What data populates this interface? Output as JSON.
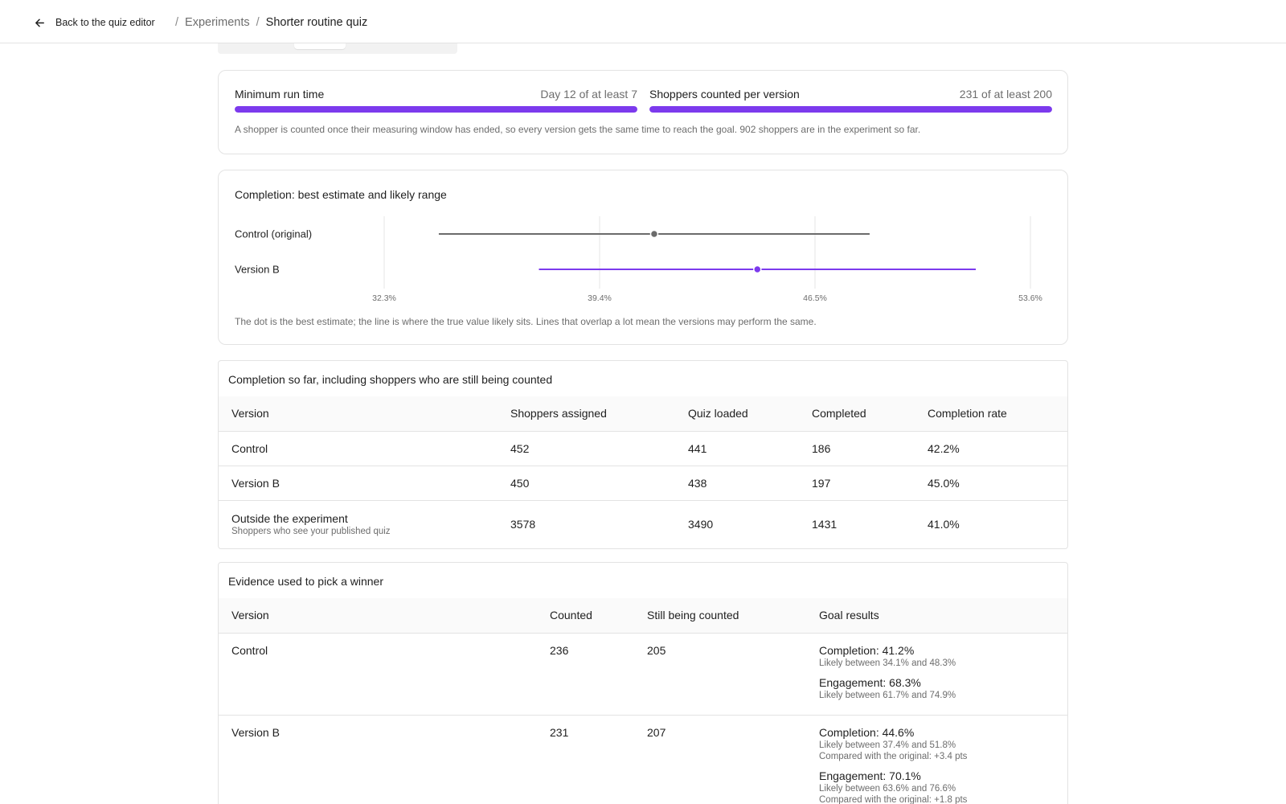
{
  "topbar": {
    "back_label": "Back to the quiz editor",
    "breadcrumb": {
      "parent": "Experiments",
      "current": "Shorter routine quiz"
    }
  },
  "progress": {
    "run_time": {
      "label": "Minimum run time",
      "value": "Day 12 of at least 7",
      "fill": 1.0
    },
    "shoppers": {
      "label": "Shoppers counted per version",
      "value": "231 of at least 200",
      "fill": 1.0
    },
    "note": "A shopper is counted once their measuring window has ended, so every version gets the same time to reach the goal. 902 shoppers are in the experiment so far."
  },
  "chart_section": {
    "title": "Completion: best estimate and likely range",
    "note": "The dot is the best estimate; the line is where the true value likely sits. Lines that overlap a lot mean the versions may perform the same."
  },
  "chart_data": {
    "type": "scatter",
    "title": "Completion: best estimate and likely range",
    "xlim": [
      32.3,
      53.6
    ],
    "x_ticks": [
      "32.3%",
      "39.4%",
      "46.5%",
      "53.6%"
    ],
    "x_tick_values": [
      32.3,
      39.4,
      46.5,
      53.6
    ],
    "grid": true,
    "series": [
      {
        "name": "Control (original)",
        "estimate": 41.2,
        "low": 34.1,
        "high": 48.3,
        "color": "#6b6b6b"
      },
      {
        "name": "Version B",
        "estimate": 44.6,
        "low": 37.4,
        "high": 51.8,
        "color": "#7c3aed"
      }
    ]
  },
  "completion_table": {
    "title": "Completion so far, including shoppers who are still being counted",
    "headers": [
      "Version",
      "Shoppers assigned",
      "Quiz loaded",
      "Completed",
      "Completion rate"
    ],
    "rows": [
      {
        "version": "Control",
        "sub": "",
        "assigned": "452",
        "loaded": "441",
        "completed": "186",
        "rate": "42.2%"
      },
      {
        "version": "Version B",
        "sub": "",
        "assigned": "450",
        "loaded": "438",
        "completed": "197",
        "rate": "45.0%"
      },
      {
        "version": "Outside the experiment",
        "sub": "Shoppers who see your published quiz",
        "assigned": "3578",
        "loaded": "3490",
        "completed": "1431",
        "rate": "41.0%"
      }
    ]
  },
  "evidence_table": {
    "title": "Evidence used to pick a winner",
    "headers": [
      "Version",
      "Counted",
      "Still being counted",
      "Goal results"
    ],
    "rows": [
      {
        "version": "Control",
        "counted": "236",
        "pending": "205",
        "goals": [
          {
            "main": "Completion: 41.2%",
            "lines": [
              "Likely between 34.1% and 48.3%"
            ]
          },
          {
            "main": "Engagement: 68.3%",
            "lines": [
              "Likely between 61.7% and 74.9%"
            ]
          }
        ]
      },
      {
        "version": "Version B",
        "counted": "231",
        "pending": "207",
        "goals": [
          {
            "main": "Completion: 44.6%",
            "lines": [
              "Likely between 37.4% and 51.8%",
              "Compared with the original: +3.4 pts"
            ]
          },
          {
            "main": "Engagement: 70.1%",
            "lines": [
              "Likely between 63.6% and 76.6%",
              "Compared with the original: +1.8 pts"
            ]
          }
        ]
      }
    ]
  },
  "colors": {
    "accent": "#7c3aed",
    "track": "#e8e2fb",
    "muted": "#6d6d6d",
    "border": "#e3e3e3"
  }
}
